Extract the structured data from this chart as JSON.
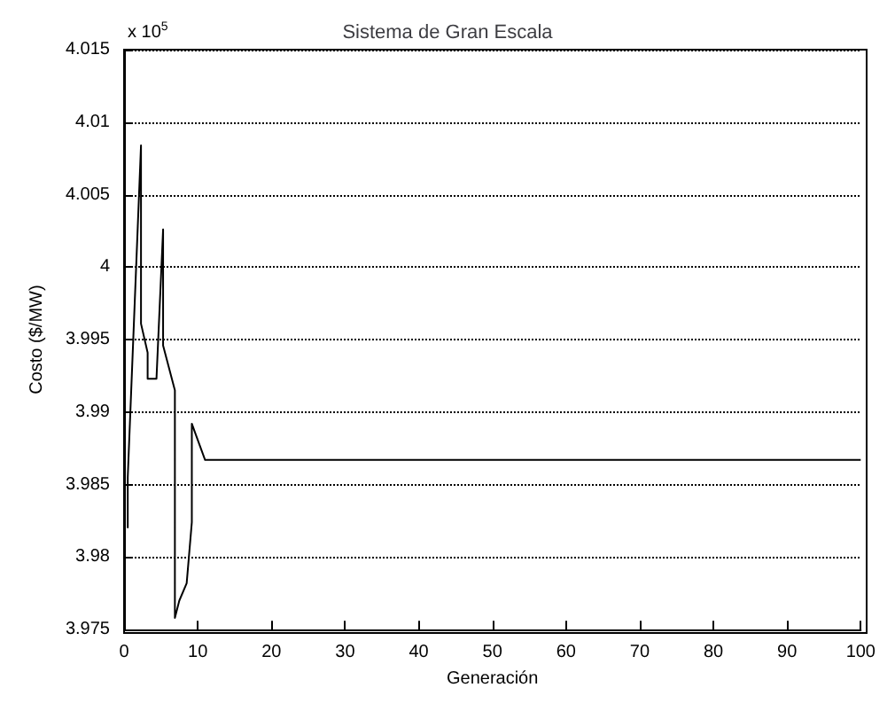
{
  "chart_data": {
    "type": "line",
    "title": "Sistema de Gran Escala",
    "xlabel": "Generación",
    "ylabel": "Costo ($/MW)",
    "annotations": [
      "x 10$^{5}$"
    ],
    "x": [
      0.5,
      0.5,
      2.3,
      2.3,
      3.2,
      3.2,
      4.4,
      5.3,
      5.3,
      6.9,
      6.9,
      7.5,
      8.5,
      9.2,
      9.2,
      9.7,
      11,
      100
    ],
    "series": [
      {
        "color": "#000000",
        "values": [
          3.982,
          3.9855,
          4.0084,
          3.9961,
          3.9941,
          3.9923,
          3.9923,
          4.0026,
          3.9946,
          3.9915,
          3.9758,
          3.977,
          3.9782,
          3.9824,
          3.9892,
          3.9885,
          3.9867,
          3.9867
        ]
      }
    ],
    "xlim": [
      0,
      100
    ],
    "xticks": [
      0,
      10,
      20,
      30,
      40,
      50,
      60,
      70,
      80,
      90,
      100
    ],
    "ylim": [
      3.975,
      4.015
    ],
    "yticks": [
      3.975,
      3.98,
      3.985,
      3.99,
      3.995,
      4,
      4.005,
      4.01,
      4.015
    ],
    "grid": "y",
    "marker": "none",
    "line_style": "solid"
  }
}
